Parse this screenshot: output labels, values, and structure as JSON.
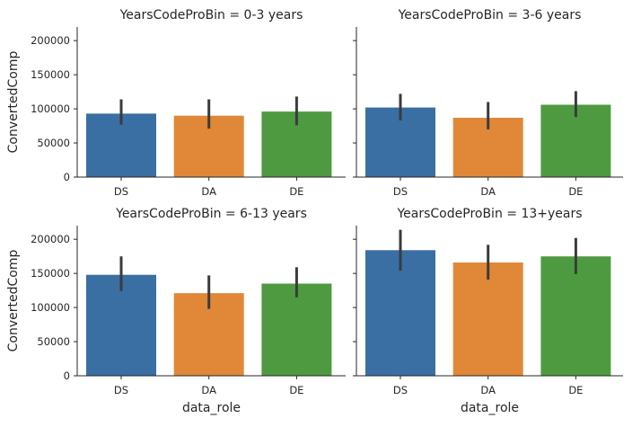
{
  "chart_data": {
    "type": "bar",
    "categories": [
      "DS",
      "DA",
      "DE"
    ],
    "xlabel": "data_role",
    "ylabel": "ConvertedComp",
    "ylim": [
      0,
      220000
    ],
    "yticks": [
      0,
      50000,
      100000,
      150000,
      200000
    ],
    "ytick_labels": [
      "0",
      "50000",
      "100000",
      "150000",
      "200000"
    ],
    "colors": [
      "#3a6fa3",
      "#e08838",
      "#4e9a41"
    ],
    "error_color": "#3b3b3b",
    "panels": [
      {
        "title": "YearsCodeProBin = 0-3 years",
        "values": [
          93000,
          90000,
          96000
        ],
        "ci": [
          [
            77000,
            114000
          ],
          [
            71000,
            114000
          ],
          [
            76000,
            118000
          ]
        ]
      },
      {
        "title": "YearsCodeProBin = 3-6 years",
        "values": [
          102000,
          87000,
          106000
        ],
        "ci": [
          [
            83000,
            122000
          ],
          [
            70000,
            110000
          ],
          [
            88000,
            126000
          ]
        ]
      },
      {
        "title": "YearsCodeProBin = 6-13 years",
        "values": [
          148000,
          121000,
          135000
        ],
        "ci": [
          [
            124000,
            175000
          ],
          [
            98000,
            147000
          ],
          [
            115000,
            159000
          ]
        ]
      },
      {
        "title": "YearsCodeProBin = 13+years",
        "values": [
          184000,
          166000,
          175000
        ],
        "ci": [
          [
            154000,
            214000
          ],
          [
            141000,
            192000
          ],
          [
            149000,
            202000
          ]
        ]
      }
    ]
  }
}
